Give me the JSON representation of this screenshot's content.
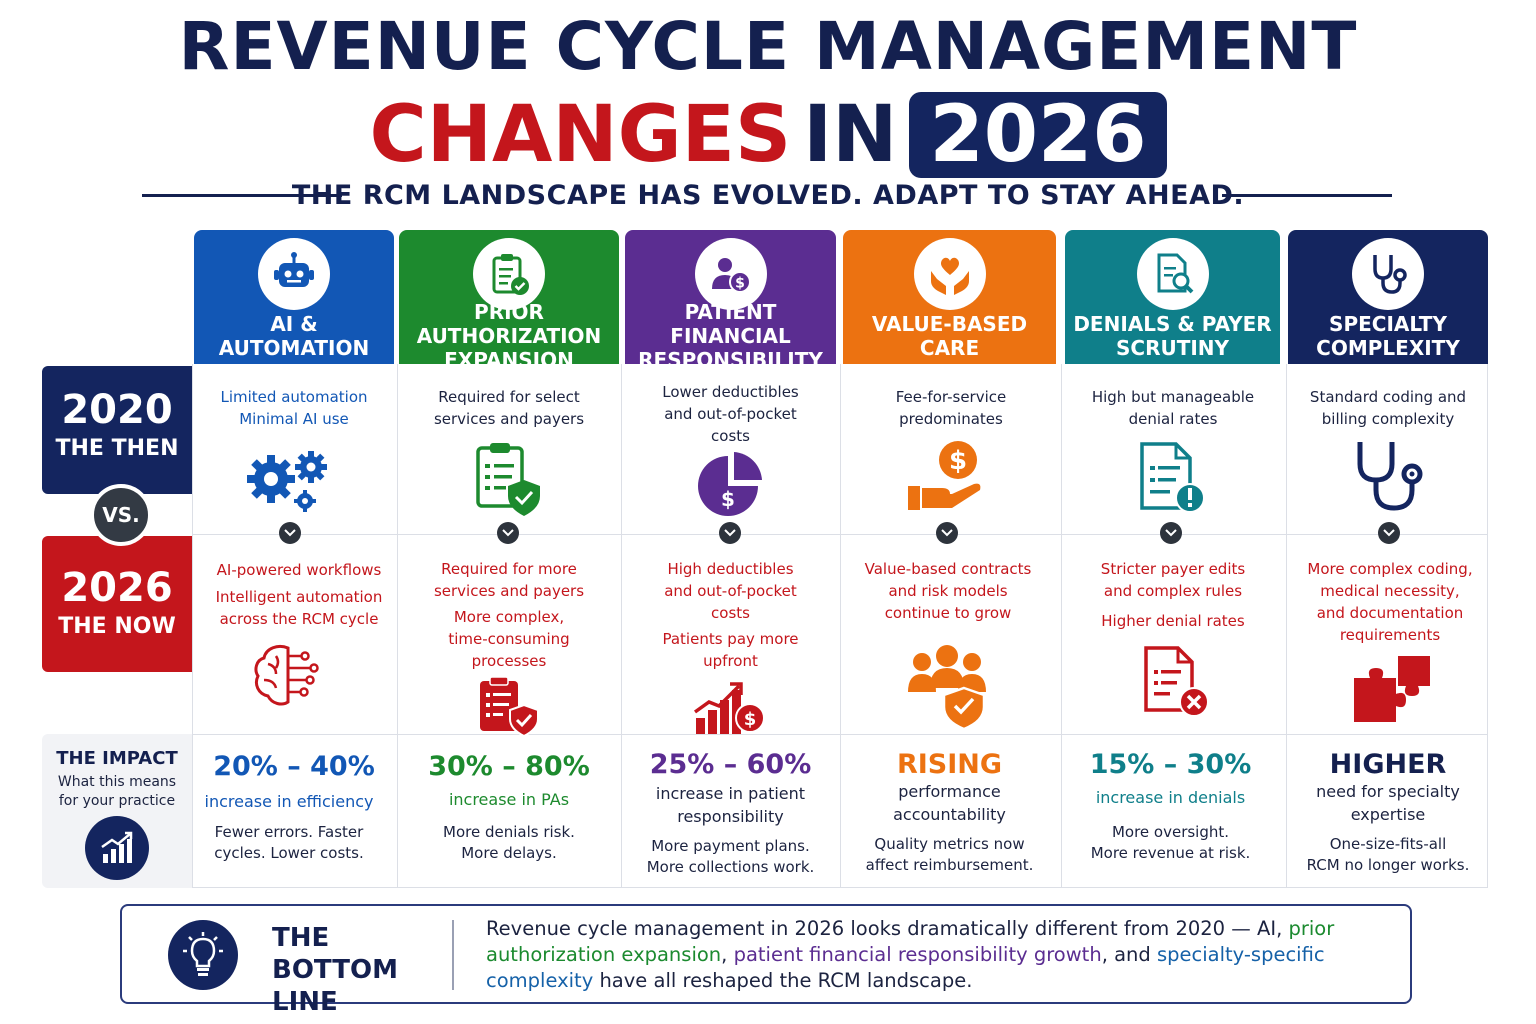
{
  "title": {
    "line1": "REVENUE CYCLE MANAGEMENT",
    "changes": "CHANGES",
    "in": "IN",
    "year": "2026",
    "subtitle": "THE RCM LANDSCAPE HAS EVOLVED. ADAPT TO STAY AHEAD."
  },
  "rows": {
    "then": {
      "year": "2020",
      "label": "THE THEN"
    },
    "vs": "VS.",
    "now": {
      "year": "2026",
      "label": "THE NOW"
    },
    "impact": {
      "title": "THE IMPACT",
      "line1": "What this means",
      "line2": "for your practice"
    }
  },
  "colors": {
    "ai": "#1257b5",
    "pa": "#1d8a2e",
    "pfr": "#5b2d91",
    "vbc": "#ec7211",
    "dps": "#0f7f8a",
    "spec": "#14255f",
    "red": "#c4161c",
    "navy": "#14204f"
  },
  "columns": [
    {
      "header": "AI & AUTOMATION",
      "header_icon": "robot-icon",
      "then": [
        "Limited automation",
        "Minimal AI use"
      ],
      "then_icon": "gears-icon",
      "now": [
        "AI-powered workflows",
        "Intelligent automation",
        "across the RCM cycle"
      ],
      "now_icon": "brain-circuit-icon",
      "stat": "20% – 40%",
      "stat_line1": "increase in efficiency",
      "stat_line2": "",
      "detail1": "Fewer errors. Faster",
      "detail2": "cycles. Lower costs."
    },
    {
      "header": "PRIOR AUTHORIZATION EXPANSION",
      "header_icon": "clipboard-check-icon",
      "then": [
        "Required for select",
        "services and payers"
      ],
      "then_icon": "clipboard-shield-icon",
      "now": [
        "Required for more",
        "services and payers",
        "More complex,",
        "time-consuming",
        "processes"
      ],
      "now_icon": "clipboard-shield-icon",
      "stat": "30% – 80%",
      "stat_line1": "increase in PAs",
      "stat_line2": "",
      "detail1": "More denials risk.",
      "detail2": "More delays."
    },
    {
      "header": "PATIENT FINANCIAL RESPONSIBILITY",
      "header_icon": "patient-dollar-icon",
      "then": [
        "Lower deductibles",
        "and out-of-pocket",
        "costs"
      ],
      "then_icon": "pie-dollar-icon",
      "now": [
        "High deductibles",
        "and out-of-pocket",
        "costs",
        "Patients pay more",
        "upfront"
      ],
      "now_icon": "rising-bars-dollar-icon",
      "stat": "25% – 60%",
      "stat_line1": "increase in patient",
      "stat_line2": "responsibility",
      "detail1": "More payment plans.",
      "detail2": "More collections work."
    },
    {
      "header": "VALUE-BASED CARE",
      "header_icon": "heart-hands-icon",
      "then": [
        "Fee-for-service",
        "predominates"
      ],
      "then_icon": "hand-dollar-icon",
      "now": [
        "Value-based contracts",
        "and risk models",
        "continue to grow"
      ],
      "now_icon": "people-shield-icon",
      "stat": "RISING",
      "stat_line1": "performance",
      "stat_line2": "accountability",
      "detail1": "Quality metrics now",
      "detail2": "affect reimbursement."
    },
    {
      "header": "DENIALS & PAYER SCRUTINY",
      "header_icon": "document-search-icon",
      "then": [
        "High but manageable",
        "denial rates"
      ],
      "then_icon": "document-alert-icon",
      "now": [
        "Stricter payer edits",
        "and complex rules",
        "Higher denial rates"
      ],
      "now_icon": "document-x-icon",
      "stat": "15% – 30%",
      "stat_line1": "increase in denials",
      "stat_line2": "",
      "detail1": "More oversight.",
      "detail2": "More revenue at risk."
    },
    {
      "header": "SPECIALTY COMPLEXITY",
      "header_icon": "stethoscope-icon",
      "then": [
        "Standard coding and",
        "billing complexity"
      ],
      "then_icon": "stethoscope-icon",
      "now": [
        "More complex coding,",
        "medical necessity,",
        "and documentation",
        "requirements"
      ],
      "now_icon": "puzzle-icon",
      "stat": "HIGHER",
      "stat_line1": "need for specialty",
      "stat_line2": "expertise",
      "detail1": "One-size-fits-all",
      "detail2": "RCM no longer works."
    }
  ],
  "bottom": {
    "title_line1": "THE BOTTOM",
    "title_line2": "LINE",
    "text_a": "Revenue cycle management in 2026 looks dramatically different from 2020 — AI,",
    "hl_green": "prior authorization expansion",
    "sep1": ", ",
    "hl_purple": "patient financial responsibility growth",
    "sep2": ", and ",
    "hl_blue": "specialty-specific complexity",
    "text_b": " have all reshaped the RCM landscape.",
    "icon": "lightbulb-icon"
  }
}
